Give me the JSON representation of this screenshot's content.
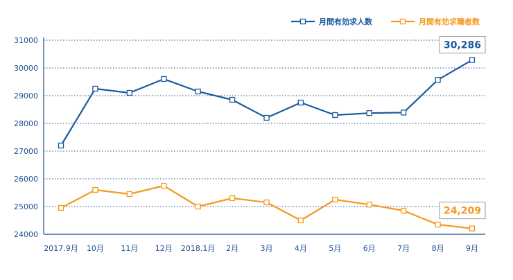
{
  "chart_data": {
    "type": "line",
    "categories": [
      "2017.9月",
      "10月",
      "11月",
      "12月",
      "2018.1月",
      "2月",
      "3月",
      "4月",
      "5月",
      "6月",
      "7月",
      "8月",
      "9月"
    ],
    "series": [
      {
        "name": "月間有効求人数",
        "color": "#1a5a9c",
        "values": [
          27200,
          29250,
          29100,
          29600,
          29150,
          28850,
          28200,
          28750,
          28300,
          28370,
          28390,
          29570,
          30286
        ],
        "callout": "30,286"
      },
      {
        "name": "月間有効求職者数",
        "color": "#f39a1e",
        "values": [
          24950,
          25600,
          25450,
          25750,
          25000,
          25300,
          25150,
          24500,
          25250,
          25070,
          24850,
          24350,
          24209
        ],
        "callout": "24,209"
      }
    ],
    "ylim": [
      24000,
      31000
    ],
    "yticks": [
      "31000",
      "30000",
      "29000",
      "28000",
      "27000",
      "26000",
      "25000",
      "24000"
    ],
    "grid": true,
    "legend_position": "top-right"
  }
}
